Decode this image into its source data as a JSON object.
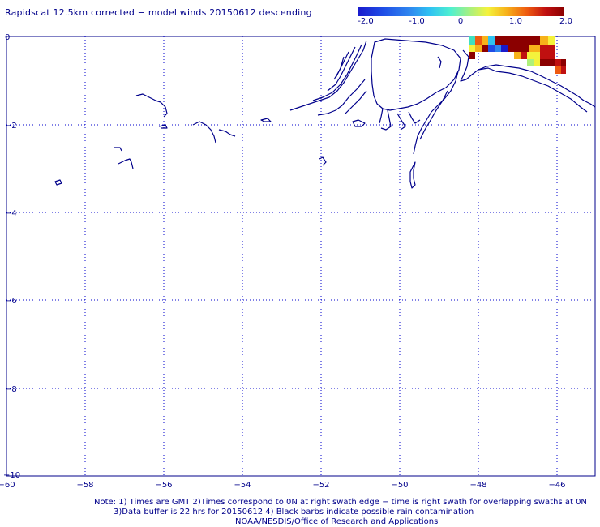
{
  "title": "Rapidscat 12.5km corrected − model winds 20150612 descending",
  "colorbar": {
    "ticks": [
      "-2.0",
      "-1.0",
      "0",
      "1.0",
      "2.0"
    ],
    "range": [
      -2.0,
      2.0
    ],
    "colors": [
      "#1a1acc",
      "#1f4ce6",
      "#2f86ef",
      "#2fc2f2",
      "#4ff0d0",
      "#aef07a",
      "#f4f23c",
      "#f7b21a",
      "#ee5a10",
      "#c01010",
      "#8b0000"
    ]
  },
  "map": {
    "y_ticks": [
      "0",
      "−2",
      "−4",
      "−6",
      "−8",
      "−10"
    ],
    "x_ticks": [
      "−60",
      "−58",
      "−56",
      "−54",
      "−52",
      "−50",
      "−48",
      "−46"
    ],
    "lon_range": [
      -60,
      -45.1
    ],
    "lat_range": [
      0,
      -10
    ],
    "coast_color": "#00008b",
    "grid": "dotted"
  },
  "notes": {
    "line1": "Note: 1) Times are GMT 2)Times correspond to 0N at right swath edge − time is right swath for overlapping swaths at 0N",
    "line2": "3)Data buffer is 22 hrs for 20150612 4) Black barbs indicate possible rain contamination",
    "line3": "NOAA/NESDIS/Office of Research and Applications"
  }
}
